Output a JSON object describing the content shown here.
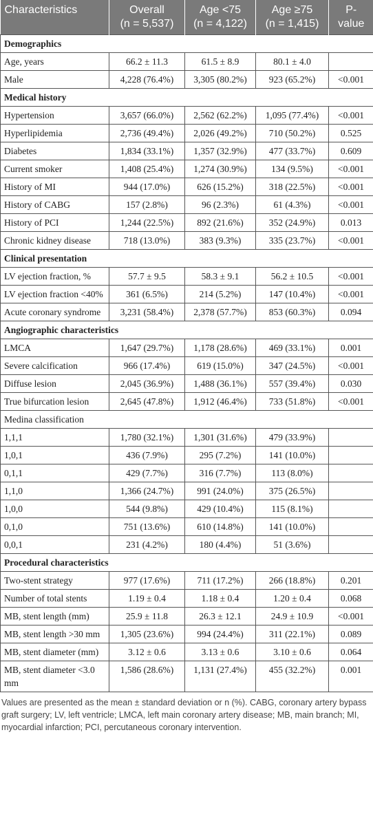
{
  "table": {
    "header": [
      [
        "Characteristics"
      ],
      [
        "Overall",
        "(n = 5,537)"
      ],
      [
        "Age <75",
        "(n = 4,122)"
      ],
      [
        "Age ≥75",
        "(n = 1,415)"
      ],
      [
        "P-",
        "value"
      ]
    ],
    "sections": [
      {
        "title": "Demographics",
        "rows": [
          [
            "Age, years",
            "66.2 ± 11.3",
            "61.5 ± 8.9",
            "80.1 ± 4.0",
            null
          ],
          [
            "Male",
            "4,228 (76.4%)",
            "3,305 (80.2%)",
            "923 (65.2%)",
            "<0.001"
          ]
        ]
      },
      {
        "title": "Medical history",
        "rows": [
          [
            "Hypertension",
            "3,657 (66.0%)",
            "2,562 (62.2%)",
            "1,095 (77.4%)",
            "<0.001"
          ],
          [
            "Hyperlipidemia",
            "2,736 (49.4%)",
            "2,026 (49.2%)",
            "710 (50.2%)",
            "0.525"
          ],
          [
            "Diabetes",
            "1,834 (33.1%)",
            "1,357 (32.9%)",
            "477 (33.7%)",
            "0.609"
          ],
          [
            "Current smoker",
            "1,408 (25.4%)",
            "1,274 (30.9%)",
            "134 (9.5%)",
            "<0.001"
          ],
          [
            "History of MI",
            "944 (17.0%)",
            "626 (15.2%)",
            "318 (22.5%)",
            "<0.001"
          ],
          [
            "History of CABG",
            "157 (2.8%)",
            "96 (2.3%)",
            "61 (4.3%)",
            "<0.001"
          ],
          [
            "History of PCI",
            "1,244 (22.5%)",
            "892 (21.6%)",
            "352 (24.9%)",
            "0.013"
          ],
          [
            "Chronic kidney disease",
            "718 (13.0%)",
            "383 (9.3%)",
            "335 (23.7%)",
            "<0.001"
          ]
        ]
      },
      {
        "title": "Clinical presentation",
        "rows": [
          [
            "LV ejection fraction, %",
            "57.7 ± 9.5",
            "58.3 ± 9.1",
            "56.2 ± 10.5",
            "<0.001"
          ],
          [
            "LV ejection fraction <40%",
            "361 (6.5%)",
            "214 (5.2%)",
            "147 (10.4%)",
            "<0.001"
          ],
          [
            "Acute coronary syndrome",
            "3,231 (58.4%)",
            "2,378 (57.7%)",
            "853 (60.3%)",
            "0.094"
          ]
        ]
      },
      {
        "title": "Angiographic characteristics",
        "rows": [
          [
            "LMCA",
            "1,647 (29.7%)",
            "1,178 (28.6%)",
            "469 (33.1%)",
            "0.001"
          ],
          [
            "Severe calcification",
            "966 (17.4%)",
            "619 (15.0%)",
            "347 (24.5%)",
            "<0.001"
          ],
          [
            "Diffuse lesion",
            "2,045 (36.9%)",
            "1,488 (36.1%)",
            "557 (39.4%)",
            "0.030"
          ],
          [
            "True bifurcation lesion",
            "2,645 (47.8%)",
            "1,912 (46.4%)",
            "733 (51.8%)",
            "<0.001"
          ],
          [
            "Medina classification"
          ],
          [
            "1,1,1",
            "1,780 (32.1%)",
            "1,301 (31.6%)",
            "479 (33.9%)",
            null
          ],
          [
            "1,0,1",
            "436 (7.9%)",
            "295 (7.2%)",
            "141 (10.0%)",
            null
          ],
          [
            "0,1,1",
            "429 (7.7%)",
            "316 (7.7%)",
            "113 (8.0%)",
            null
          ],
          [
            "1,1,0",
            "1,366 (24.7%)",
            "991 (24.0%)",
            "375 (26.5%)",
            null
          ],
          [
            "1,0,0",
            "544 (9.8%)",
            "429 (10.4%)",
            "115 (8.1%)",
            null
          ],
          [
            "0,1,0",
            "751 (13.6%)",
            "610 (14.8%)",
            "141 (10.0%)",
            null
          ],
          [
            "0,0,1",
            "231 (4.2%)",
            "180 (4.4%)",
            "51 (3.6%)",
            null
          ]
        ]
      },
      {
        "title": "Procedural characteristics",
        "rows": [
          [
            "Two-stent strategy",
            "977 (17.6%)",
            "711 (17.2%)",
            "266 (18.8%)",
            "0.201"
          ],
          [
            "Number of total stents",
            "1.19 ± 0.4",
            "1.18 ± 0.4",
            "1.20 ± 0.4",
            "0.068"
          ],
          [
            "MB, stent length (mm)",
            "25.9 ± 11.8",
            "26.3 ± 12.1",
            "24.9 ± 10.9",
            "<0.001"
          ],
          [
            "MB, stent length >30 mm",
            "1,305 (23.6%)",
            "994 (24.4%)",
            "311 (22.1%)",
            "0.089"
          ],
          [
            "MB, stent diameter (mm)",
            "3.12 ± 0.6",
            "3.13 ± 0.6",
            "3.10 ± 0.6",
            "0.064"
          ],
          [
            "MB, stent diameter <3.0 mm",
            "1,586 (28.6%)",
            "1,131 (27.4%)",
            "455 (32.2%)",
            "0.001"
          ]
        ]
      }
    ],
    "footnote": "Values are presented as the mean ± standard deviation or n (%). CABG, coronary artery bypass graft surgery; LV, left ventricle; LMCA, left main coronary artery disease; MB, main branch; MI, myocardial infarction; PCI, percutaneous coronary intervention."
  }
}
